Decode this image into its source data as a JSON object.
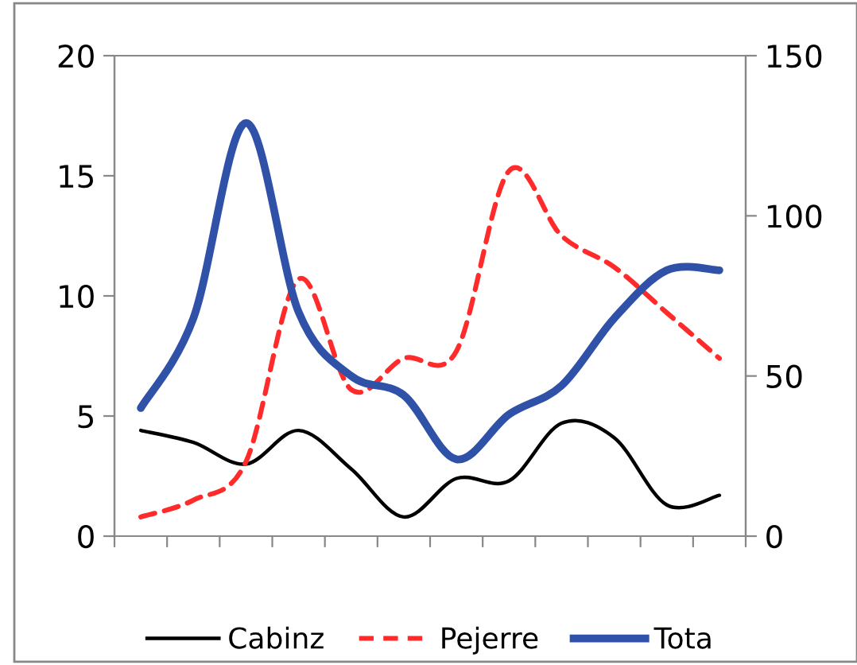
{
  "chart_data": {
    "type": "line",
    "categories": [
      null,
      null,
      null,
      null,
      null,
      null,
      null,
      null,
      null,
      null,
      null,
      null
    ],
    "series": [
      {
        "name": "Cabinz",
        "color": "#000000",
        "line_style": "solid",
        "values": [
          4.4,
          3.9,
          3.0,
          4.4,
          2.8,
          0.8,
          2.4,
          2.3,
          4.7,
          4.1,
          1.3,
          1.7
        ]
      },
      {
        "name": "Pejerre",
        "color": "#ff2a2a",
        "line_style": "dashed",
        "values": [
          0.8,
          1.5,
          3.1,
          10.7,
          6.1,
          7.4,
          7.7,
          15.2,
          12.5,
          11.2,
          9.3,
          7.4
        ]
      },
      {
        "name": "Tota",
        "color": "#2f52a8",
        "line_style": "solid",
        "axis": "y2",
        "values": [
          40,
          68,
          129,
          70,
          50,
          44,
          24,
          38,
          47,
          68,
          83,
          83
        ]
      }
    ],
    "ylim": [
      0,
      20
    ],
    "yticks": [
      0,
      5,
      10,
      15,
      20
    ],
    "y2lim": [
      0,
      150
    ],
    "y2ticks": [
      0,
      50,
      100,
      150
    ],
    "grid": false,
    "legend": "bottom",
    "marker": "none"
  }
}
